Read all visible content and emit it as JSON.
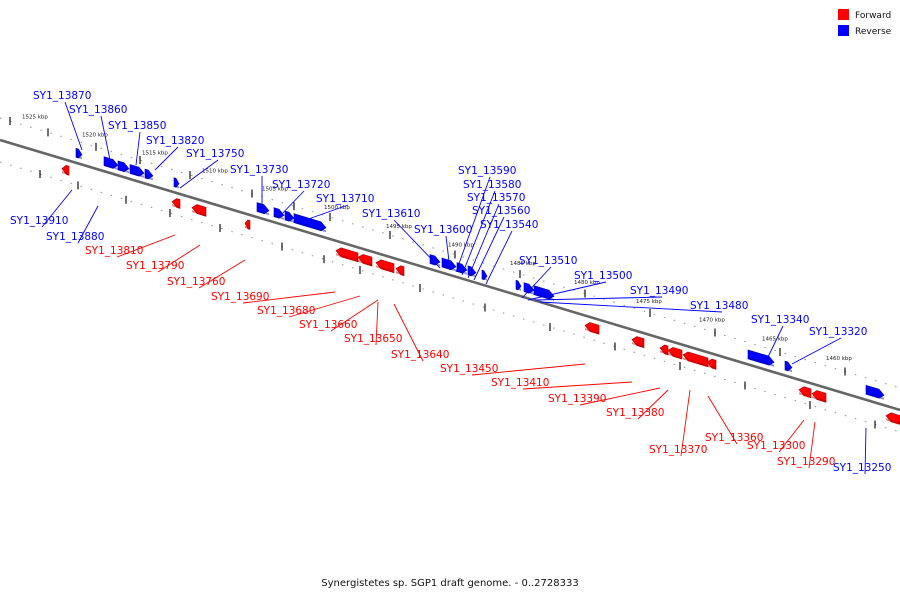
{
  "legend": {
    "items": [
      {
        "label": "Forward",
        "color": "#ff0000"
      },
      {
        "label": "Reverse",
        "color": "#0000ff"
      }
    ]
  },
  "caption": "Synergistetes sp. SGP1 draft genome. - 0..2728333",
  "colors": {
    "forward": "#ff0000",
    "reverse": "#0000ff",
    "backbone": "#666666"
  },
  "scale_labels": [
    "1525 kbp",
    "1520 kbp",
    "1515 kbp",
    "1510 kbp",
    "1505 kbp",
    "1500 kbp",
    "1495 kbp",
    "1490 kbp",
    "1485 kbp",
    "1480 kbp",
    "1475 kbp",
    "1470 kbp",
    "1465 kbp",
    "1460 kbp"
  ],
  "reverse_labels": [
    "SY1_13870",
    "SY1_13860",
    "SY1_13850",
    "SY1_13820",
    "SY1_13750",
    "SY1_13730",
    "SY1_13720",
    "SY1_13710",
    "SY1_13610",
    "SY1_13600",
    "SY1_13590",
    "SY1_13580",
    "SY1_13570",
    "SY1_13560",
    "SY1_13540",
    "SY1_13510",
    "SY1_13500",
    "SY1_13490",
    "SY1_13480",
    "SY1_13340",
    "SY1_13320",
    "SY1_13910",
    "SY1_13880",
    "SY1_13250"
  ],
  "forward_labels": [
    "SY1_13810",
    "SY1_13790",
    "SY1_13760",
    "SY1_13690",
    "SY1_13680",
    "SY1_13660",
    "SY1_13650",
    "SY1_13640",
    "SY1_13450",
    "SY1_13410",
    "SY1_13390",
    "SY1_13380",
    "SY1_13370",
    "SY1_13360",
    "SY1_13300",
    "SY1_13290"
  ]
}
